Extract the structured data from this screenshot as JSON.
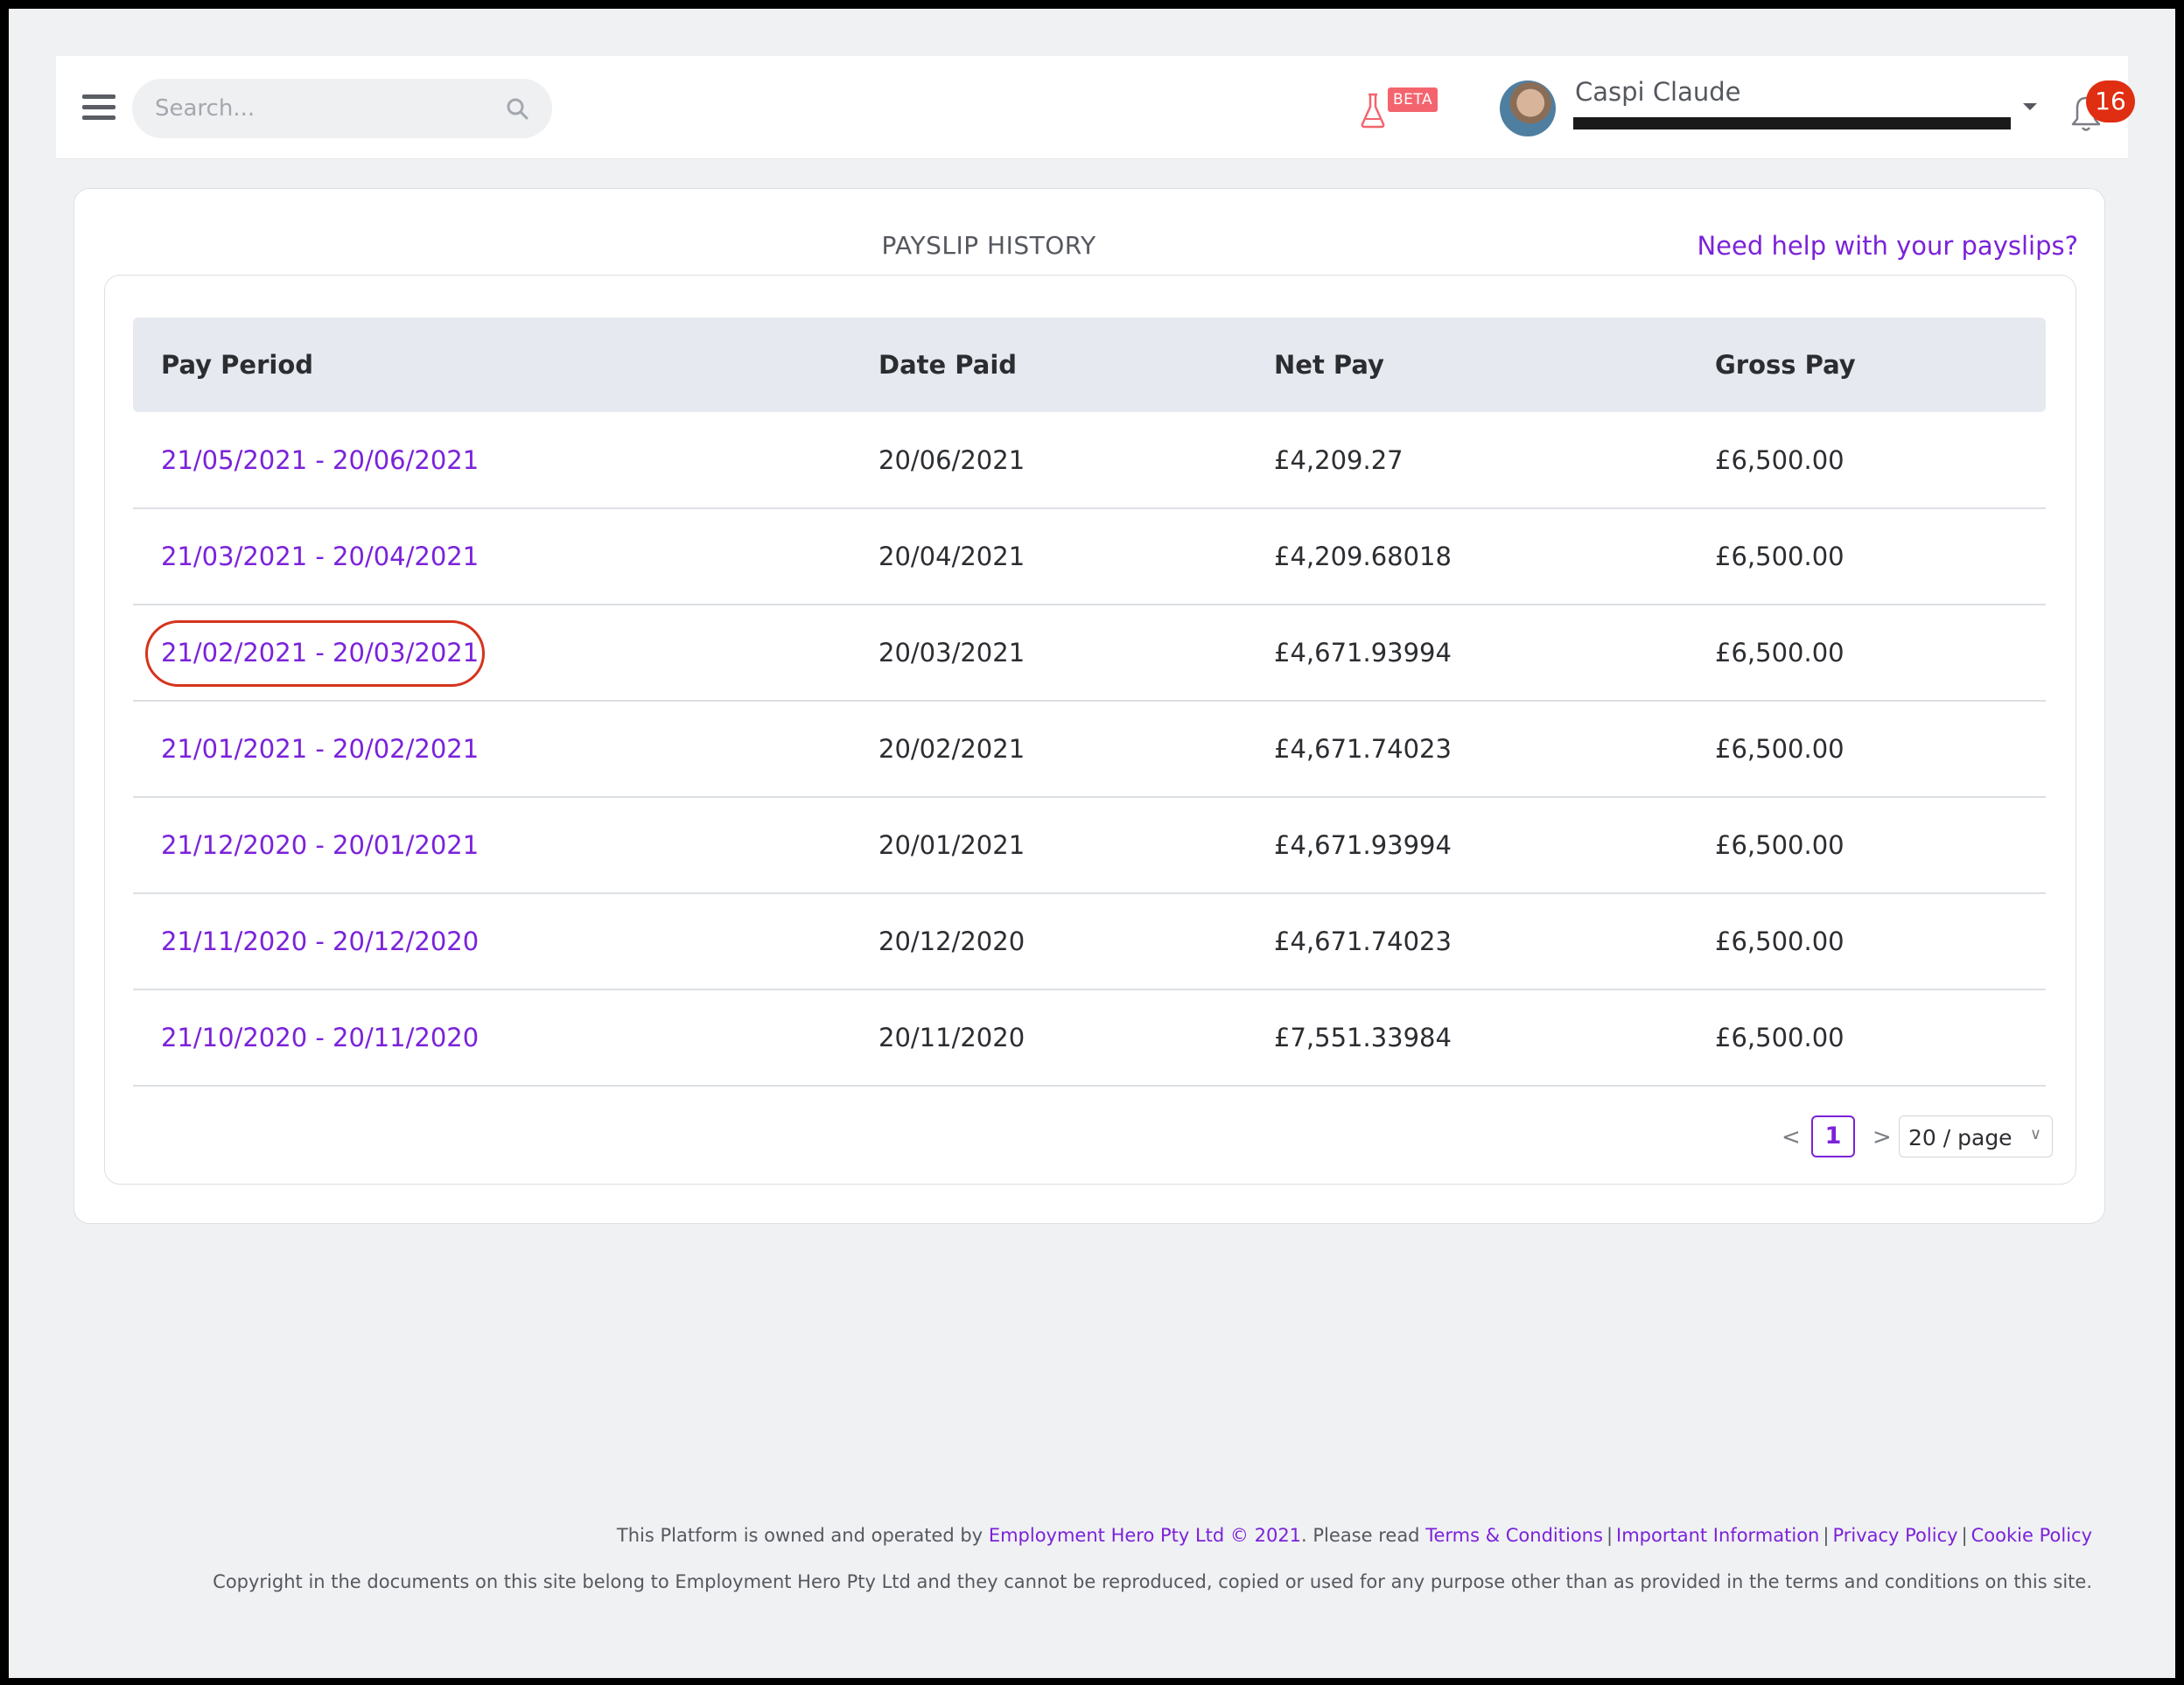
{
  "header": {
    "search_placeholder": "Search...",
    "beta_label": "BETA",
    "user_name": "Caspi Claude",
    "notification_count": "16"
  },
  "page": {
    "title": "PAYSLIP HISTORY",
    "help_link": "Need help with your payslips?"
  },
  "table": {
    "columns": [
      "Pay Period",
      "Date Paid",
      "Net Pay",
      "Gross Pay"
    ],
    "rows": [
      {
        "period": "21/05/2021 - 20/06/2021",
        "date_paid": "20/06/2021",
        "net_pay": "£4,209.27",
        "gross_pay": "£6,500.00"
      },
      {
        "period": "21/03/2021 - 20/04/2021",
        "date_paid": "20/04/2021",
        "net_pay": "£4,209.68018",
        "gross_pay": "£6,500.00"
      },
      {
        "period": "21/02/2021 - 20/03/2021",
        "date_paid": "20/03/2021",
        "net_pay": "£4,671.93994",
        "gross_pay": "£6,500.00",
        "highlighted": true
      },
      {
        "period": "21/01/2021 - 20/02/2021",
        "date_paid": "20/02/2021",
        "net_pay": "£4,671.74023",
        "gross_pay": "£6,500.00"
      },
      {
        "period": "21/12/2020 - 20/01/2021",
        "date_paid": "20/01/2021",
        "net_pay": "£4,671.93994",
        "gross_pay": "£6,500.00"
      },
      {
        "period": "21/11/2020 - 20/12/2020",
        "date_paid": "20/12/2020",
        "net_pay": "£4,671.74023",
        "gross_pay": "£6,500.00"
      },
      {
        "period": "21/10/2020 - 20/11/2020",
        "date_paid": "20/11/2020",
        "net_pay": "£7,551.33984",
        "gross_pay": "£6,500.00"
      }
    ]
  },
  "pagination": {
    "prev": "<",
    "current_page": "1",
    "next": ">",
    "page_size": "20 / page"
  },
  "footer": {
    "owned_prefix": "This Platform is owned and operated by",
    "company_link": "Employment Hero Pty Ltd © 2021",
    "please_read": ". Please read",
    "links": [
      "Terms & Conditions",
      "Important Information",
      "Privacy Policy",
      "Cookie Policy"
    ],
    "copyright": "Copyright in the documents on this site belong to Employment Hero Pty Ltd and they cannot be reproduced, copied or used for any purpose other than as provided in the terms and conditions on this site."
  },
  "colors": {
    "accent": "#7b22d9",
    "badge": "#e02e12",
    "beta": "#f4646e",
    "highlight_ring": "#d5341d"
  }
}
